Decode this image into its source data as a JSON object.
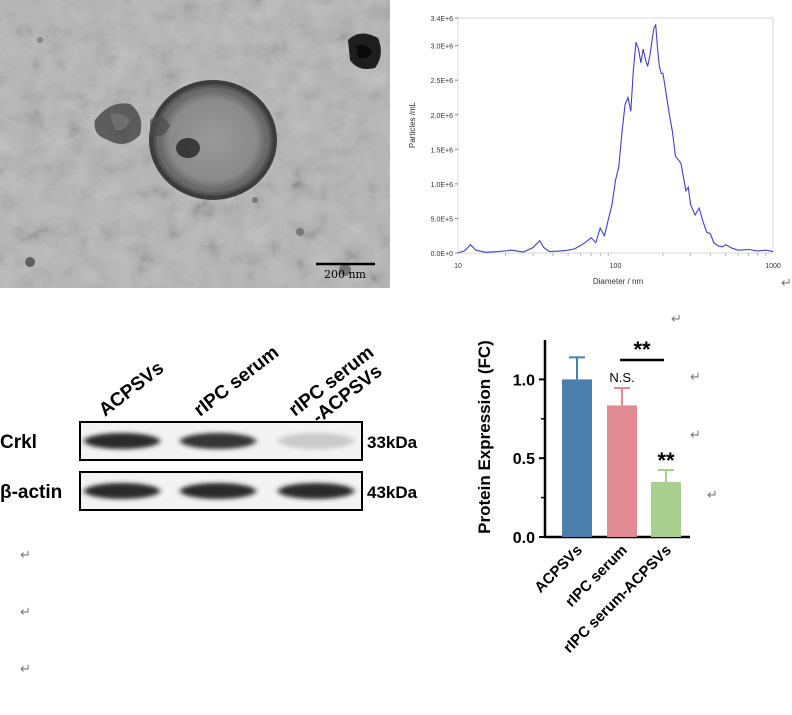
{
  "tem": {
    "scale_label": "200 nm"
  },
  "nta": {
    "chart_data": {
      "type": "line",
      "xlabel": "Diameter / nm",
      "ylabel": "Particles /mL",
      "xscale": "log",
      "xlim": [
        10,
        1000
      ],
      "ylim": [
        0,
        3400000
      ],
      "x_ticks": [
        "10",
        "100",
        "1000"
      ],
      "y_ticks": [
        "0.0E+0",
        "5.0E+5",
        "1.0E+6",
        "1.5E+6",
        "2.0E+6",
        "2.5E+6",
        "3.0E+6",
        "3.4E+6"
      ],
      "y_tick_values": [
        0,
        500000,
        1000000,
        1500000,
        2000000,
        2500000,
        3000000,
        3400000
      ],
      "reference_line_x": 100,
      "grid": true,
      "series": [
        {
          "color": "#4040cc",
          "x": [
            10,
            11,
            12,
            13,
            15,
            18,
            22,
            26,
            30,
            33,
            35,
            38,
            45,
            50,
            55,
            60,
            65,
            70,
            75,
            80,
            85,
            90,
            95,
            100,
            105,
            110,
            115,
            120,
            125,
            130,
            135,
            140,
            145,
            150,
            155,
            160,
            165,
            170,
            175,
            180,
            185,
            190,
            195,
            200,
            205,
            210,
            220,
            230,
            240,
            250,
            260,
            270,
            280,
            290,
            300,
            320,
            340,
            360,
            380,
            400,
            420,
            450,
            480,
            500,
            550,
            600,
            700,
            800,
            900,
            1000
          ],
          "values": [
            0,
            30000,
            120000,
            40000,
            10000,
            20000,
            40000,
            15000,
            80000,
            180000,
            80000,
            20000,
            30000,
            40000,
            60000,
            110000,
            160000,
            220000,
            150000,
            360000,
            250000,
            480000,
            700000,
            1050000,
            1250000,
            1750000,
            2150000,
            2250000,
            2050000,
            2650000,
            3050000,
            2950000,
            2750000,
            2950000,
            2800000,
            2700000,
            2850000,
            3050000,
            3250000,
            3300000,
            2950000,
            2700000,
            2600000,
            2600000,
            2450000,
            2300000,
            2000000,
            1750000,
            1400000,
            1350000,
            1300000,
            1100000,
            900000,
            950000,
            700000,
            550000,
            650000,
            450000,
            300000,
            280000,
            150000,
            100000,
            90000,
            120000,
            70000,
            40000,
            50000,
            30000,
            40000,
            20000
          ]
        }
      ]
    }
  },
  "western_blot": {
    "lanes": [
      "ACPSVs",
      "rIPC serum",
      "rIPC serum\n-ACPSVs"
    ],
    "rows": [
      {
        "protein": "Crkl",
        "size": "33kDa",
        "intensities": [
          0.95,
          0.9,
          0.2
        ]
      },
      {
        "protein": "β-actin",
        "size": "43kDa",
        "intensities": [
          0.95,
          0.95,
          0.95
        ]
      }
    ]
  },
  "bar_chart": {
    "chart_data": {
      "type": "bar",
      "ylabel": "Protein Expression (FC)",
      "ylim": [
        0,
        1.25
      ],
      "y_ticks": [
        "0.0",
        "0.5",
        "1.0"
      ],
      "y_tick_values": [
        0,
        0.5,
        1.0
      ],
      "categories": [
        "ACPSVs",
        "rIPC serum",
        "rIPC serum-ACPSVs"
      ],
      "values": [
        1.0,
        0.835,
        0.35
      ],
      "errors": [
        0.14,
        0.11,
        0.075
      ],
      "colors": [
        "#4a7fad",
        "#e08b91",
        "#a9cf8e"
      ],
      "annotations": [
        "",
        "N.S.",
        "**"
      ],
      "bracket_label": "**"
    }
  },
  "return_marks": [
    "↵",
    "↵",
    "↵",
    "↵",
    "↵",
    "↵",
    "↵",
    "↵"
  ]
}
